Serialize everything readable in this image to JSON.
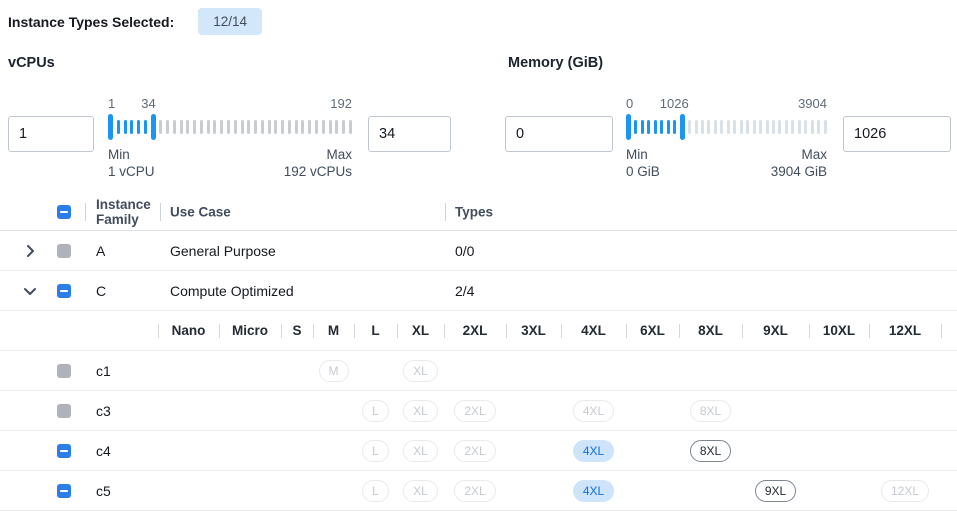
{
  "header": {
    "label": "Instance Types Selected:",
    "badge": "12/14"
  },
  "filters": {
    "vcpus": {
      "label": "vCPUs",
      "min_input": "1",
      "max_input": "34",
      "scale": {
        "min": "1",
        "current": "34",
        "max": "192",
        "current_pct": 16.6
      },
      "min_caption_title": "Min",
      "min_caption_sub": "1 vCPU",
      "max_caption_title": "Max",
      "max_caption_sub": "192 vCPUs",
      "ticks": {
        "selected_between": 5,
        "after": 29
      }
    },
    "memory": {
      "label": "Memory (GiB)",
      "min_input": "0",
      "max_input": "1026",
      "scale": {
        "min": "0",
        "current": "1026",
        "max": "3904",
        "current_pct": 24
      },
      "min_caption_title": "Min",
      "min_caption_sub": "0 GiB",
      "max_caption_title": "Max",
      "max_caption_sub": "3904 GiB",
      "ticks": {
        "selected_between": 7,
        "after": 22
      }
    }
  },
  "table": {
    "header_checkbox": "indeterminate",
    "columns": {
      "family": "Instance Family",
      "use_case": "Use Case",
      "types": "Types"
    },
    "family_rows": [
      {
        "chevron": "right",
        "checkbox": "disabled",
        "family": "A",
        "use_case": "General Purpose",
        "types": "0/0"
      },
      {
        "chevron": "down",
        "checkbox": "indeterminate",
        "family": "C",
        "use_case": "Compute Optimized",
        "types": "2/4"
      }
    ],
    "size_columns": [
      "Nano",
      "Micro",
      "S",
      "M",
      "L",
      "XL",
      "2XL",
      "3XL",
      "4XL",
      "6XL",
      "8XL",
      "9XL",
      "10XL",
      "12XL"
    ],
    "instance_rows": [
      {
        "name": "c1",
        "checkbox": "disabled",
        "chips": [
          {
            "size": "M",
            "state": "disabled"
          },
          {
            "size": "XL",
            "state": "disabled"
          }
        ]
      },
      {
        "name": "c3",
        "checkbox": "disabled",
        "chips": [
          {
            "size": "L",
            "state": "disabled"
          },
          {
            "size": "XL",
            "state": "disabled"
          },
          {
            "size": "2XL",
            "state": "disabled"
          },
          {
            "size": "4XL",
            "state": "disabled"
          },
          {
            "size": "8XL",
            "state": "disabled"
          }
        ]
      },
      {
        "name": "c4",
        "checkbox": "indeterminate",
        "chips": [
          {
            "size": "L",
            "state": "disabled"
          },
          {
            "size": "XL",
            "state": "disabled"
          },
          {
            "size": "2XL",
            "state": "disabled"
          },
          {
            "size": "4XL",
            "state": "selected"
          },
          {
            "size": "8XL",
            "state": "enabled"
          }
        ]
      },
      {
        "name": "c5",
        "checkbox": "indeterminate",
        "chips": [
          {
            "size": "L",
            "state": "disabled"
          },
          {
            "size": "XL",
            "state": "disabled"
          },
          {
            "size": "2XL",
            "state": "disabled"
          },
          {
            "size": "4XL",
            "state": "selected"
          },
          {
            "size": "9XL",
            "state": "enabled"
          },
          {
            "size": "12XL",
            "state": "disabled"
          }
        ]
      }
    ]
  },
  "colors": {
    "accent_blue": "#2b7de9",
    "slider_blue": "#1a96f0",
    "selected_chip_bg": "#cde4fa",
    "badge_bg": "#d3e7fa"
  }
}
